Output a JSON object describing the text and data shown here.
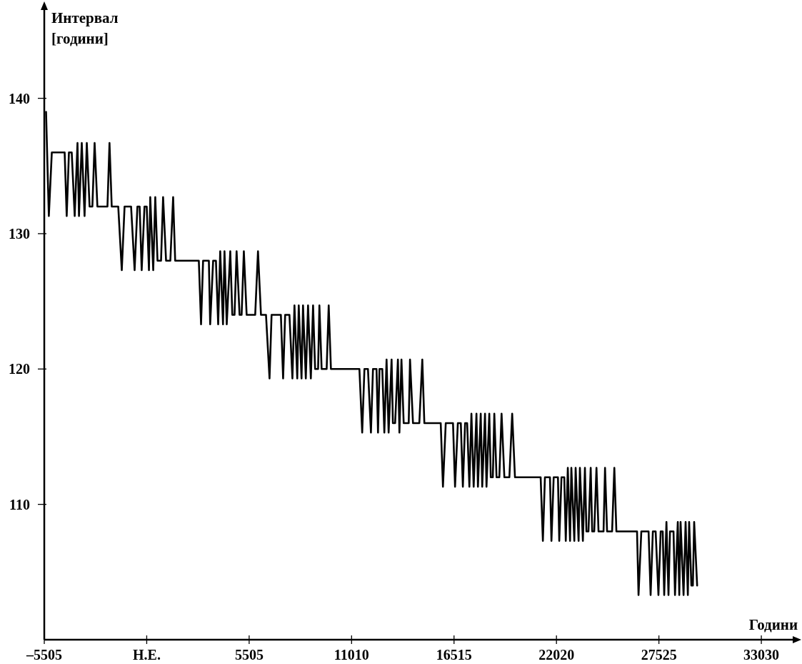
{
  "chart_data": {
    "type": "line",
    "xlabel": "Години",
    "ylabel": "Интервал [години]",
    "xlim": [
      -5505,
      35100
    ],
    "ylim": [
      100,
      147
    ],
    "xticks": [
      {
        "value": -5505,
        "label": "–5505"
      },
      {
        "value": 0,
        "label": "Н.Е."
      },
      5505,
      11010,
      16515,
      22020,
      27525,
      33030
    ],
    "yticks": [
      110,
      120,
      130,
      140
    ],
    "grid": false,
    "series": [
      {
        "color": "#000000",
        "line_style": "solid",
        "x": [
          -5410,
          -5260,
          -5100,
          -4410,
          -4300,
          -4180,
          -4030,
          -3870,
          -3720,
          -3640,
          -3490,
          -3340,
          -3220,
          -3070,
          -2920,
          -2800,
          -2650,
          -2110,
          -2000,
          -1880,
          -1530,
          -1340,
          -1190,
          -840,
          -650,
          -500,
          -380,
          -270,
          -120,
          0,
          120,
          190,
          350,
          460,
          580,
          770,
          880,
          1040,
          1270,
          1420,
          1530,
          2800,
          2920,
          3030,
          3340,
          3410,
          3570,
          3720,
          3840,
          3950,
          4100,
          4180,
          4300,
          4490,
          4600,
          4720,
          4830,
          4990,
          5100,
          5220,
          5370,
          5830,
          5980,
          6140,
          6410,
          6600,
          6710,
          7210,
          7330,
          7440,
          7670,
          7830,
          7940,
          8090,
          8170,
          8320,
          8400,
          8550,
          8670,
          8820,
          8940,
          9050,
          9210,
          9280,
          9400,
          9670,
          9780,
          9900,
          11430,
          11580,
          11700,
          11890,
          12050,
          12160,
          12350,
          12430,
          12510,
          12660,
          12770,
          12890,
          13000,
          13160,
          13230,
          13350,
          13500,
          13580,
          13690,
          13810,
          14080,
          14150,
          14310,
          14650,
          14810,
          14920,
          15800,
          15920,
          16070,
          16460,
          16570,
          16720,
          16880,
          16990,
          17110,
          17220,
          17340,
          17450,
          17570,
          17720,
          17800,
          17950,
          18030,
          18180,
          18260,
          18410,
          18490,
          18600,
          18680,
          18800,
          18950,
          19070,
          19220,
          19490,
          19640,
          19790,
          21100,
          21170,
          21290,
          21400,
          21670,
          21750,
          21870,
          22100,
          22170,
          22290,
          22440,
          22520,
          22630,
          22750,
          22820,
          22980,
          23050,
          23210,
          23280,
          23440,
          23550,
          23630,
          23740,
          23860,
          23940,
          24050,
          24170,
          24280,
          24550,
          24630,
          24740,
          25010,
          25130,
          25240,
          26350,
          26430,
          26580,
          26970,
          27080,
          27200,
          27350,
          27500,
          27620,
          27730,
          27810,
          27930,
          28040,
          28120,
          28310,
          28390,
          28540,
          28620,
          28690,
          28850,
          28960,
          29080,
          29150,
          29270,
          29350,
          29420,
          29580
        ],
        "values": [
          139,
          131.3,
          136,
          136,
          131.3,
          136,
          136,
          131.3,
          136.7,
          131.3,
          136.7,
          131.3,
          136.7,
          132,
          132,
          136.7,
          132,
          132,
          136.7,
          132,
          132,
          127.3,
          132,
          132,
          127.3,
          132,
          132,
          127.3,
          132,
          132,
          127.3,
          132.7,
          127.3,
          132.7,
          128,
          128,
          132.7,
          128,
          128,
          132.7,
          128,
          128,
          123.3,
          128,
          128,
          123.3,
          128,
          128,
          123.3,
          128.7,
          123.3,
          128.7,
          123.3,
          128.7,
          124,
          124,
          128.7,
          124,
          124,
          128.7,
          124,
          124,
          128.7,
          124,
          124,
          119.3,
          124,
          124,
          119.3,
          124,
          124,
          119.3,
          124.7,
          119.3,
          124.7,
          119.3,
          124.7,
          119.3,
          124.7,
          119.3,
          124.7,
          120,
          120,
          124.7,
          120,
          120,
          124.7,
          120,
          120,
          115.3,
          120,
          120,
          115.3,
          120,
          120,
          115.3,
          120,
          120,
          115.3,
          120.7,
          115.3,
          120.7,
          116,
          116,
          120.7,
          115.3,
          120.7,
          116,
          116,
          120.7,
          116,
          116,
          120.7,
          116,
          116,
          111.3,
          116,
          116,
          111.3,
          116,
          116,
          111.3,
          116,
          116,
          111.3,
          116.7,
          111.3,
          116.7,
          111.3,
          116.7,
          111.3,
          116.7,
          111.3,
          116.7,
          112,
          112,
          116.7,
          112,
          112,
          116.7,
          112,
          112,
          116.7,
          112,
          112,
          112,
          107.3,
          112,
          112,
          107.3,
          112,
          112,
          107.3,
          112,
          112,
          107.3,
          112.7,
          107.3,
          112.7,
          107.3,
          112.7,
          107.3,
          112.7,
          107.3,
          112.7,
          108,
          108,
          112.7,
          108,
          108,
          112.7,
          108,
          108,
          112.7,
          108,
          108,
          112.7,
          108,
          108,
          103.3,
          108,
          108,
          103.3,
          108,
          108,
          103.3,
          108,
          108,
          103.3,
          108.7,
          103.3,
          108,
          108,
          103.3,
          108.7,
          103.3,
          108.7,
          103.3,
          108.7,
          103.3,
          108.7,
          104,
          104,
          108.7,
          104
        ]
      }
    ]
  }
}
